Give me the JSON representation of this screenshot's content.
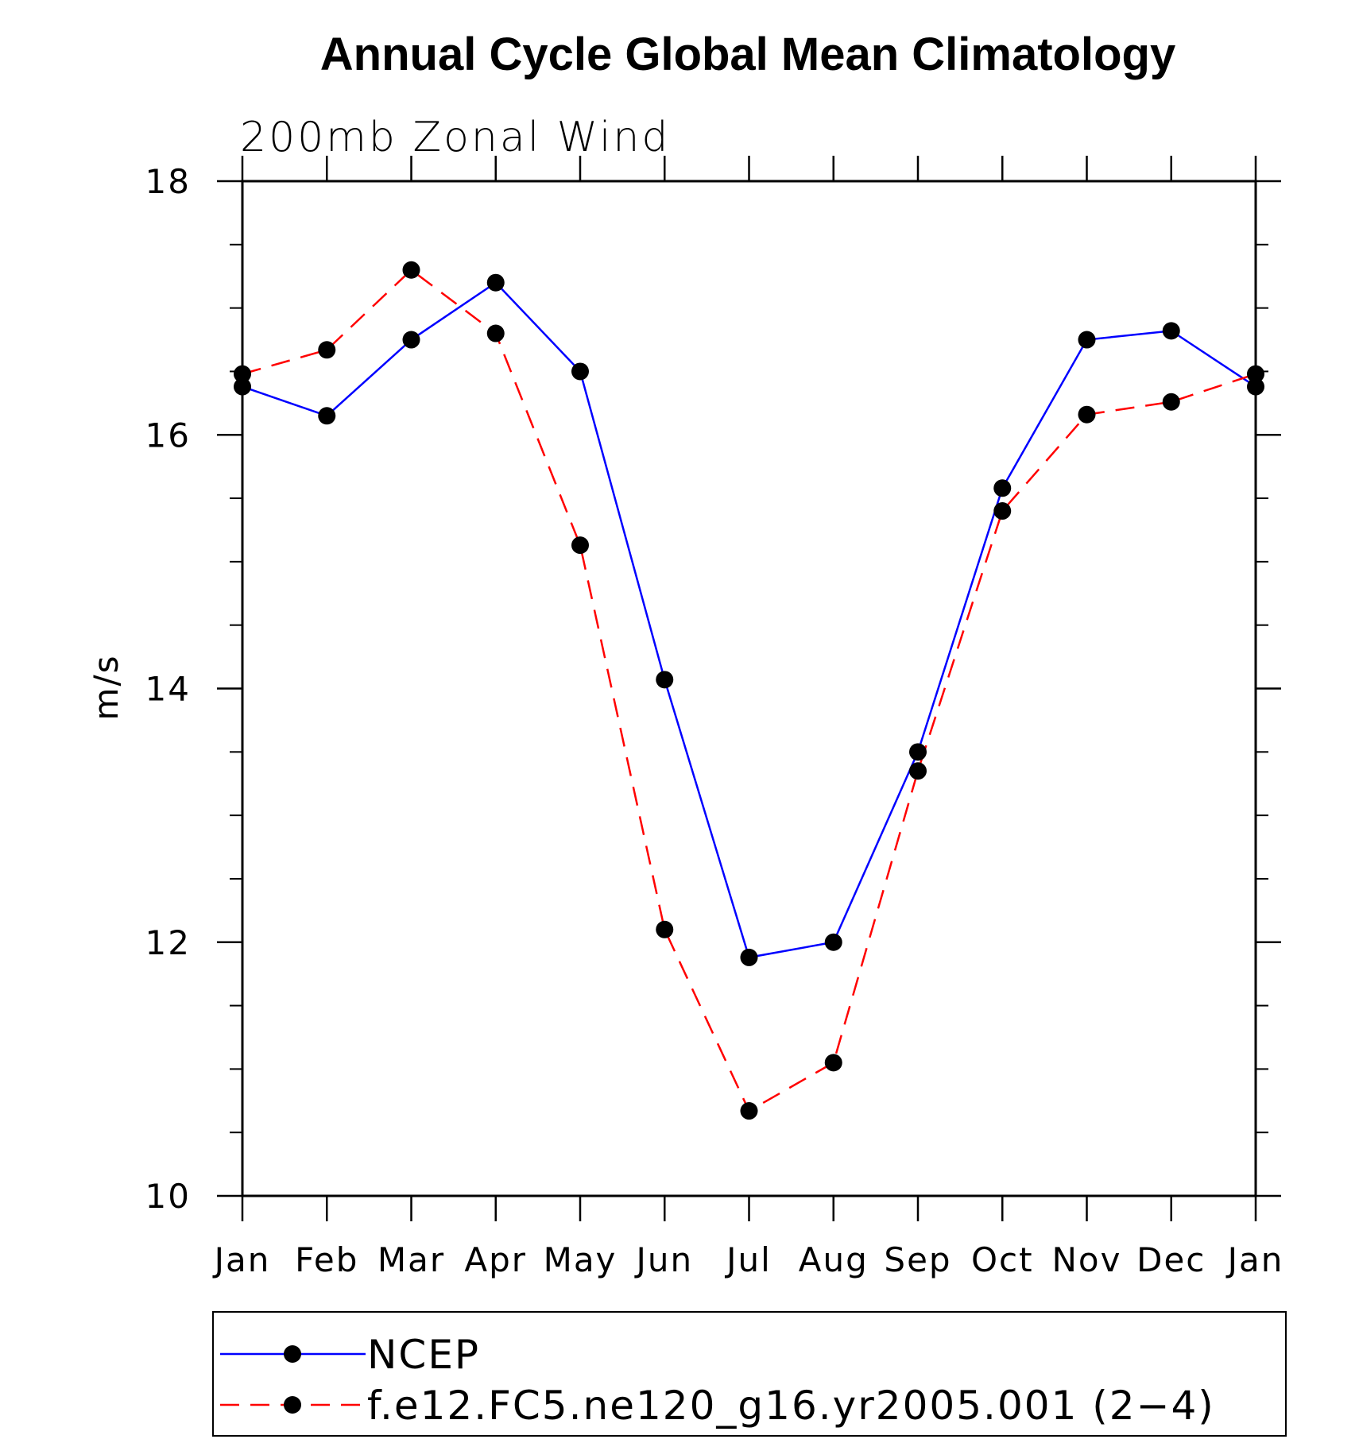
{
  "chart_data": {
    "type": "line",
    "title": "Annual Cycle Global Mean Climatology",
    "subtitle": "200mb Zonal Wind",
    "xlabel": "",
    "ylabel": "m/s",
    "categories": [
      "Jan",
      "Feb",
      "Mar",
      "Apr",
      "May",
      "Jun",
      "Jul",
      "Aug",
      "Sep",
      "Oct",
      "Nov",
      "Dec",
      "Jan"
    ],
    "ylim": [
      10,
      18
    ],
    "yticks": [
      10,
      12,
      14,
      16,
      18
    ],
    "yticks_minor": [
      10.5,
      11,
      11.5,
      12.5,
      13,
      13.5,
      14.5,
      15,
      15.5,
      16.5,
      17,
      17.5
    ],
    "grid": false,
    "legend": "bottom",
    "series": [
      {
        "name": "NCEP",
        "color": "#0000ff",
        "dash": "solid",
        "marker": "filled-circle",
        "values": [
          16.38,
          16.15,
          16.75,
          17.2,
          16.5,
          14.07,
          11.88,
          12.0,
          13.5,
          15.58,
          16.75,
          16.82,
          16.38
        ]
      },
      {
        "name": "f.e12.FC5.ne120_g16.yr2005.001 (2−4)",
        "color": "#ff0000",
        "dash": "dashed",
        "marker": "filled-circle",
        "values": [
          16.48,
          16.67,
          17.3,
          16.8,
          15.13,
          12.1,
          10.67,
          11.05,
          13.35,
          15.4,
          16.16,
          16.26,
          16.48
        ]
      }
    ]
  }
}
